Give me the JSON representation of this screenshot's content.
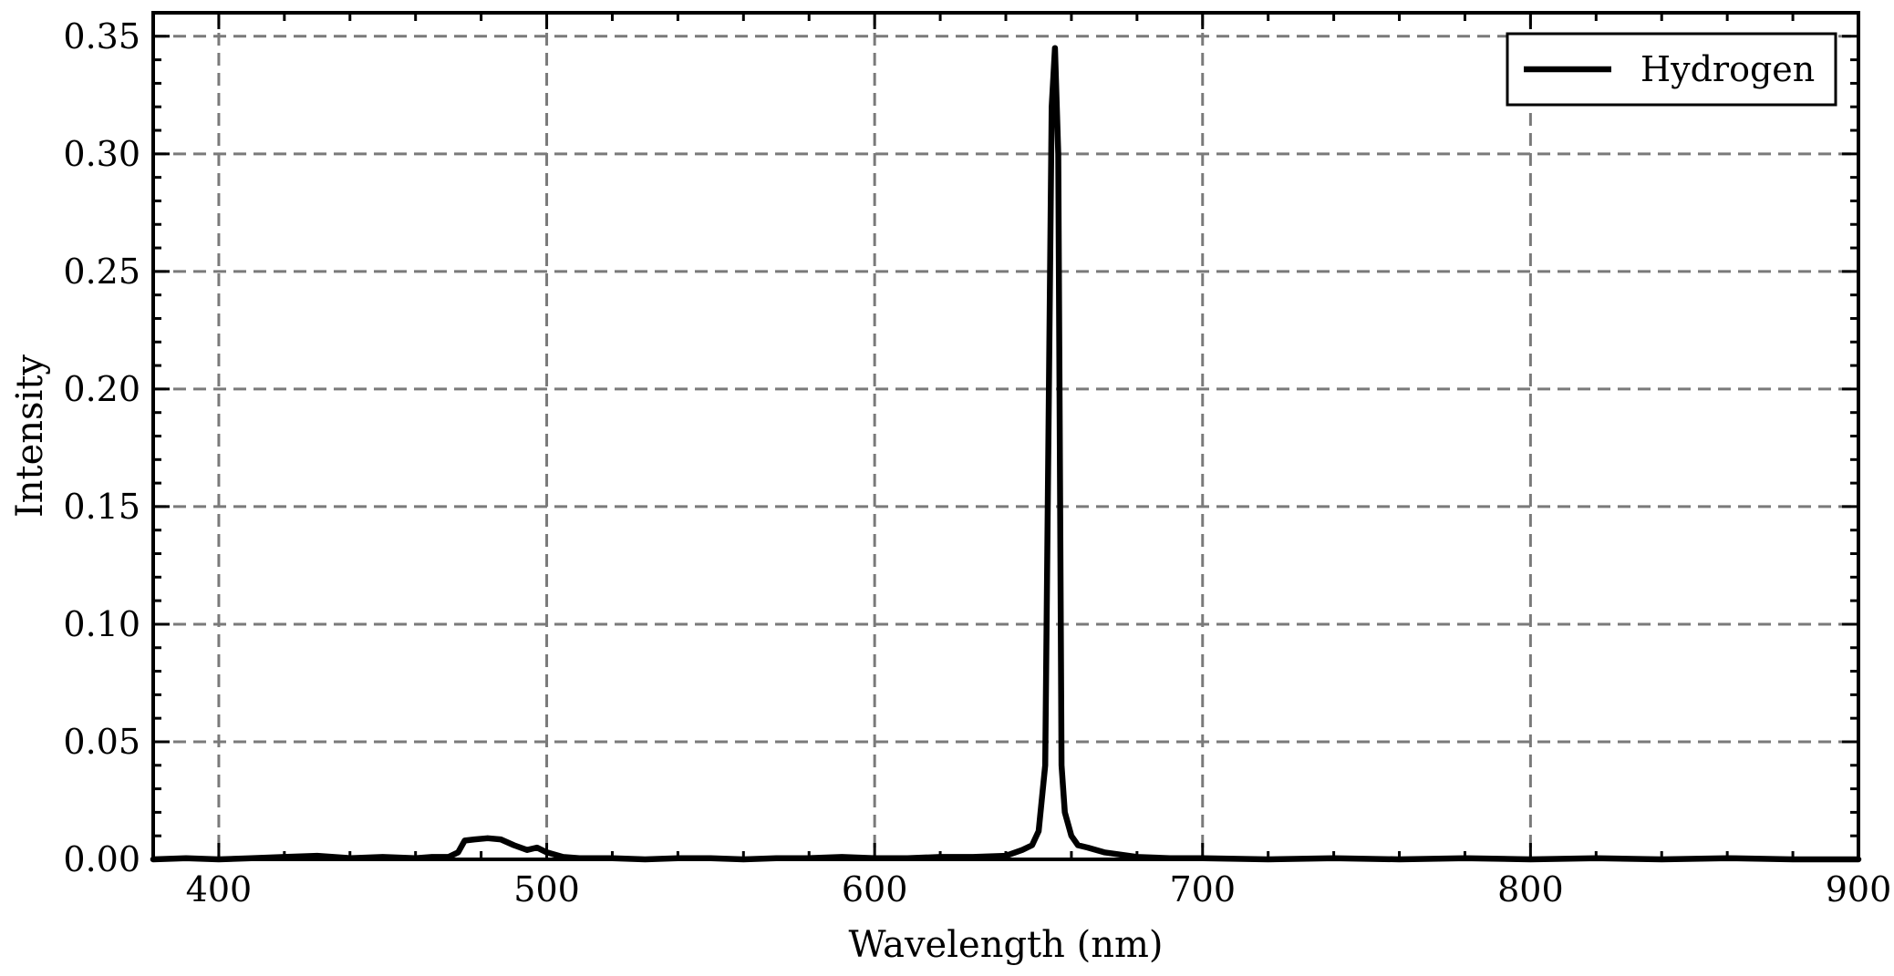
{
  "chart_data": {
    "type": "line",
    "title": "",
    "xlabel": "Wavelength (nm)",
    "ylabel": "Intensity",
    "xlim": [
      380,
      900
    ],
    "ylim": [
      0,
      0.36
    ],
    "grid": true,
    "legend_position": "top-right",
    "x_ticks": [
      400,
      500,
      600,
      700,
      800,
      900
    ],
    "x_tick_labels": [
      "400",
      "500",
      "600",
      "700",
      "800",
      "900"
    ],
    "x_minor_step": 20,
    "y_ticks": [
      0,
      0.05,
      0.1,
      0.15,
      0.2,
      0.25,
      0.3,
      0.35
    ],
    "y_tick_labels": [
      "0.00",
      "0.05",
      "0.10",
      "0.15",
      "0.20",
      "0.25",
      "0.30",
      "0.35"
    ],
    "y_minor_step": 0.01,
    "series": [
      {
        "name": "Hydrogen",
        "color": "#000000",
        "points": [
          [
            380,
            0.0
          ],
          [
            390,
            0.0005
          ],
          [
            400,
            0.0
          ],
          [
            410,
            0.0005
          ],
          [
            420,
            0.001
          ],
          [
            430,
            0.0015
          ],
          [
            440,
            0.0005
          ],
          [
            450,
            0.001
          ],
          [
            460,
            0.0005
          ],
          [
            465,
            0.001
          ],
          [
            470,
            0.001
          ],
          [
            473,
            0.003
          ],
          [
            475,
            0.008
          ],
          [
            478,
            0.0085
          ],
          [
            482,
            0.009
          ],
          [
            486,
            0.0085
          ],
          [
            490,
            0.006
          ],
          [
            494,
            0.004
          ],
          [
            497,
            0.005
          ],
          [
            500,
            0.003
          ],
          [
            505,
            0.001
          ],
          [
            510,
            0.0005
          ],
          [
            520,
            0.0005
          ],
          [
            530,
            0.0
          ],
          [
            540,
            0.0005
          ],
          [
            550,
            0.0005
          ],
          [
            560,
            0.0
          ],
          [
            570,
            0.0005
          ],
          [
            580,
            0.0005
          ],
          [
            590,
            0.001
          ],
          [
            600,
            0.0005
          ],
          [
            610,
            0.0005
          ],
          [
            620,
            0.001
          ],
          [
            630,
            0.001
          ],
          [
            640,
            0.0015
          ],
          [
            645,
            0.004
          ],
          [
            648,
            0.006
          ],
          [
            650,
            0.012
          ],
          [
            652,
            0.04
          ],
          [
            654,
            0.32
          ],
          [
            655,
            0.345
          ],
          [
            656,
            0.3
          ],
          [
            657,
            0.04
          ],
          [
            658,
            0.02
          ],
          [
            660,
            0.01
          ],
          [
            662,
            0.006
          ],
          [
            665,
            0.005
          ],
          [
            670,
            0.003
          ],
          [
            675,
            0.002
          ],
          [
            680,
            0.001
          ],
          [
            690,
            0.0005
          ],
          [
            700,
            0.0005
          ],
          [
            720,
            0.0
          ],
          [
            740,
            0.0005
          ],
          [
            760,
            0.0
          ],
          [
            780,
            0.0005
          ],
          [
            800,
            0.0
          ],
          [
            820,
            0.0005
          ],
          [
            840,
            0.0
          ],
          [
            860,
            0.0005
          ],
          [
            880,
            0.0
          ],
          [
            900,
            0.0
          ]
        ]
      }
    ]
  }
}
